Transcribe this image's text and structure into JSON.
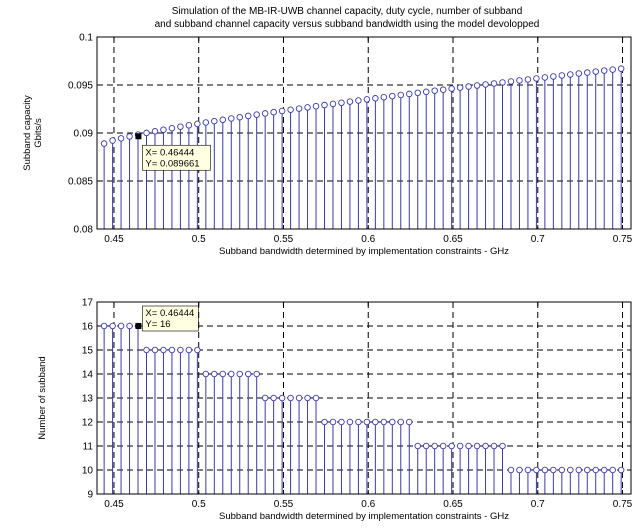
{
  "figure_title_lines": [
    "Simulation of the MB-IR-UWB channel capacity, duty cycle, number of subband",
    "and subband channel capacity versus subband bandwidth using the model devolopped"
  ],
  "colors": {
    "stem": "#3a3aa8",
    "marker": "#3a3aa8",
    "grid": "#000000",
    "datatip_bg": "#ffffe1",
    "selected_marker": "#000000"
  },
  "chart_data": [
    {
      "type": "stem",
      "title": "",
      "xlabel": "Subband bandwidth determined by implementation constraints - GHz",
      "ylabel": [
        "Subband capacity",
        "Gbits/s"
      ],
      "xlim": [
        0.44,
        0.755
      ],
      "ylim": [
        0.08,
        0.1
      ],
      "xticks": [
        0.45,
        0.5,
        0.55,
        0.6,
        0.65,
        0.7,
        0.75
      ],
      "xtick_labels": [
        "0.45",
        "0.5",
        "0.55",
        "0.6",
        "0.65",
        "0.7",
        "0.75"
      ],
      "yticks": [
        0.08,
        0.085,
        0.09,
        0.095,
        0.1
      ],
      "ytick_labels": [
        "0.08",
        "0.085",
        "0.09",
        "0.095",
        "0.1"
      ],
      "grid": true,
      "x_start": 0.4442,
      "x_step": 0.005,
      "y_start": 0.0889,
      "y_end": 0.0967,
      "y_exponent": 0.78,
      "num_points": 62,
      "datatip": {
        "x": 0.46444,
        "y": 0.089661,
        "lines": [
          "X= 0.46444",
          "Y= 0.089661"
        ]
      }
    },
    {
      "type": "stem",
      "title": "",
      "xlabel": "Subband bandwidth determined by implementation constraints - GHz",
      "ylabel": [
        "Number of subband"
      ],
      "xlim": [
        0.44,
        0.755
      ],
      "ylim": [
        9,
        17
      ],
      "xticks": [
        0.45,
        0.5,
        0.55,
        0.6,
        0.65,
        0.7,
        0.75
      ],
      "xtick_labels": [
        "0.45",
        "0.5",
        "0.55",
        "0.6",
        "0.65",
        "0.7",
        "0.75"
      ],
      "yticks": [
        9,
        10,
        11,
        12,
        13,
        14,
        15,
        16,
        17
      ],
      "ytick_labels": [
        "9",
        "10",
        "11",
        "12",
        "13",
        "14",
        "15",
        "16",
        "17"
      ],
      "grid": true,
      "x_start": 0.4442,
      "x_step": 0.005,
      "steps": [
        {
          "x_max": 0.468,
          "y": 16
        },
        {
          "x_max": 0.501,
          "y": 15
        },
        {
          "x_max": 0.535,
          "y": 14
        },
        {
          "x_max": 0.57,
          "y": 13
        },
        {
          "x_max": 0.625,
          "y": 12
        },
        {
          "x_max": 0.68,
          "y": 11
        },
        {
          "x_max": 0.76,
          "y": 10
        }
      ],
      "num_points": 62,
      "datatip": {
        "x": 0.46444,
        "y": 16,
        "lines": [
          "X= 0.46444",
          "Y= 16"
        ]
      }
    }
  ]
}
